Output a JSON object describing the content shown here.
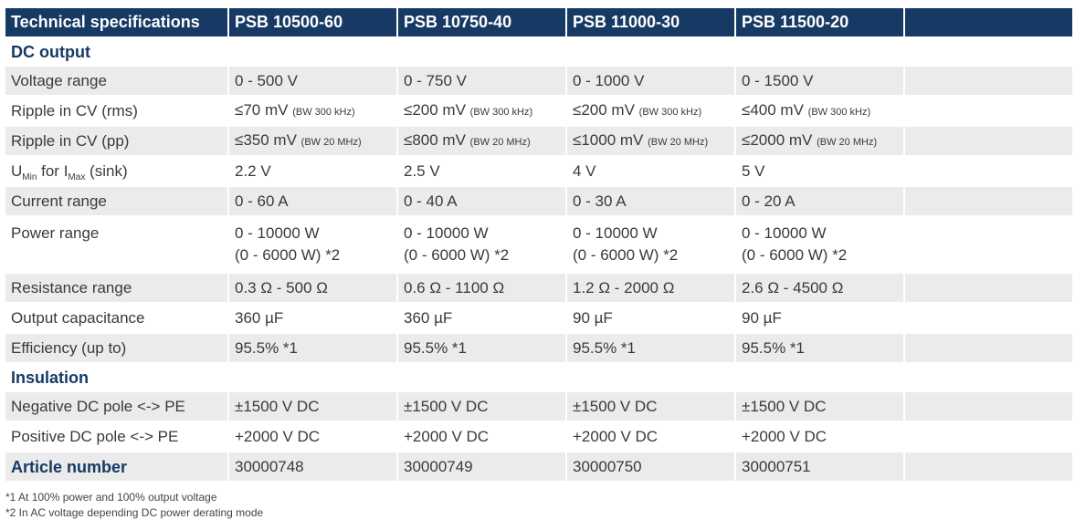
{
  "header": [
    "Technical specifications",
    "PSB 10500-60",
    "PSB 10750-40",
    "PSB 11000-30",
    "PSB 11500-20",
    ""
  ],
  "sections": {
    "dc_output": "DC output",
    "insulation": "Insulation"
  },
  "rows": {
    "voltage_range": {
      "label": "Voltage range",
      "values": [
        "0 - 500 V",
        "0 - 750 V",
        "0 - 1000 V",
        "0 - 1500 V"
      ]
    },
    "ripple_rms": {
      "label": "Ripple in CV (rms)",
      "values": [
        "≤70 mV",
        "≤200 mV",
        "≤200 mV",
        "≤400 mV"
      ],
      "note": "(BW 300 kHz)"
    },
    "ripple_pp": {
      "label": "Ripple in CV (pp)",
      "values": [
        "≤350 mV",
        "≤800 mV",
        "≤1000 mV",
        "≤2000 mV"
      ],
      "note": "(BW 20 MHz)"
    },
    "umin": {
      "label_u": "U",
      "label_u_sub": "Min",
      "label_mid": " for I",
      "label_i_sub": "Max",
      "label_end": " (sink)",
      "values": [
        "2.2 V",
        "2.5 V",
        "4 V",
        "5 V"
      ]
    },
    "current_range": {
      "label": "Current range",
      "values": [
        "0 - 60 A",
        "0 - 40 A",
        "0 - 30 A",
        "0 - 20 A"
      ]
    },
    "power_range": {
      "label": "Power range",
      "values": [
        "0 - 10000 W",
        "0 - 10000 W",
        "0 - 10000 W",
        "0 - 10000 W"
      ],
      "values2": [
        "(0 - 6000 W) *2",
        "(0 - 6000 W) *2",
        "(0 - 6000 W) *2",
        "(0 - 6000 W) *2"
      ]
    },
    "resistance_range": {
      "label": "Resistance range",
      "values": [
        "0.3 Ω - 500 Ω",
        "0.6 Ω - 1100 Ω",
        "1.2 Ω - 2000 Ω",
        "2.6 Ω - 4500 Ω"
      ]
    },
    "output_capacitance": {
      "label": "Output capacitance",
      "values": [
        "360 µF",
        "360 µF",
        "90 µF",
        "90 µF"
      ]
    },
    "efficiency": {
      "label": "Efficiency (up to)",
      "values": [
        "95.5% *1",
        "95.5% *1",
        "95.5% *1",
        "95.5% *1"
      ]
    },
    "neg_dc_pole": {
      "label": "Negative DC pole <-> PE",
      "values": [
        "±1500 V DC",
        "±1500 V DC",
        "±1500 V DC",
        "±1500 V DC"
      ]
    },
    "pos_dc_pole": {
      "label": "Positive DC pole <-> PE",
      "values": [
        "+2000 V DC",
        "+2000 V DC",
        "+2000 V DC",
        "+2000 V DC"
      ]
    },
    "article_number": {
      "label": "Article number",
      "values": [
        "30000748",
        "30000749",
        "30000750",
        "30000751"
      ]
    }
  },
  "footnotes": [
    "*1 At 100% power and 100% output voltage",
    "*2 In AC voltage depending DC power derating mode"
  ]
}
